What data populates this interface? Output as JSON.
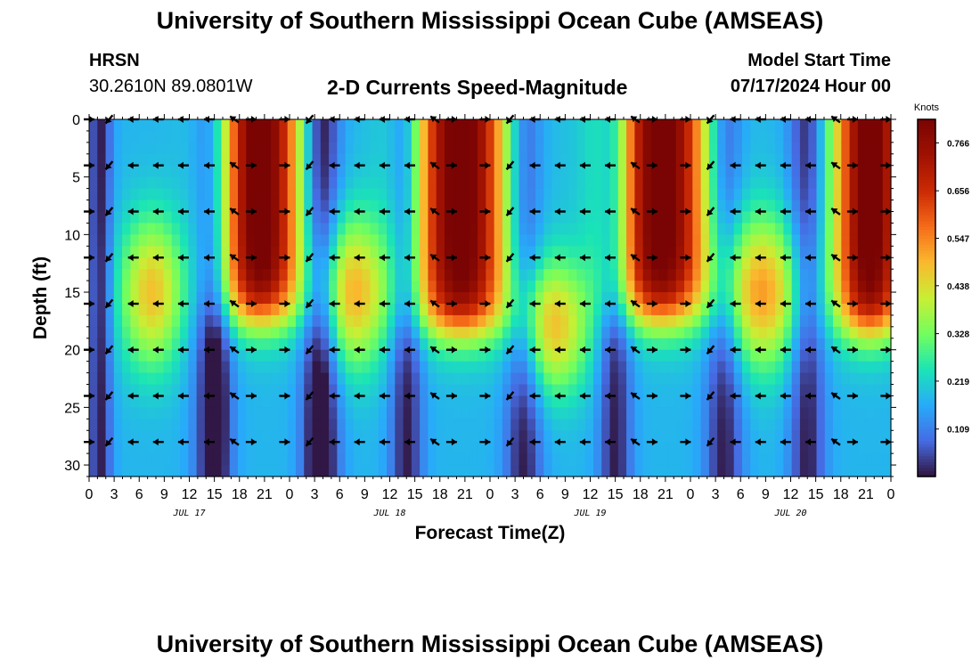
{
  "header": {
    "title": "University of Southern Mississippi Ocean Cube (AMSEAS)",
    "station": "HRSN",
    "coordinates": "30.2610N  89.0801W",
    "chart_title": "2-D Currents Speed-Magnitude",
    "model_start_label": "Model Start Time",
    "model_start_value": "07/17/2024 Hour 00"
  },
  "footer": {
    "title": "University of Southern Mississippi Ocean Cube (AMSEAS)"
  },
  "chart_data": {
    "type": "heatmap",
    "title": "2-D Currents Speed-Magnitude",
    "xlabel": "Forecast Time(Z)",
    "ylabel": "Depth (ft)",
    "x_range_hours": [
      0,
      96
    ],
    "ylim": [
      0,
      31
    ],
    "y_reversed": true,
    "x_tick_labels": [
      "0",
      "3",
      "6",
      "9",
      "12",
      "15",
      "18",
      "21",
      "0",
      "3",
      "6",
      "9",
      "12",
      "15",
      "18",
      "21",
      "0",
      "3",
      "6",
      "9",
      "12",
      "15",
      "18",
      "21",
      "0",
      "3",
      "6",
      "9",
      "12",
      "15",
      "18",
      "21",
      "0"
    ],
    "y_ticks": [
      0,
      5,
      10,
      15,
      20,
      25,
      30
    ],
    "day_labels": [
      {
        "label": "JUL 17",
        "hour": 12
      },
      {
        "label": "JUL 18",
        "hour": 36
      },
      {
        "label": "JUL 19",
        "hour": 60
      },
      {
        "label": "JUL 20",
        "hour": 84
      }
    ],
    "colorbar": {
      "label": "Knots",
      "range": [
        0.0,
        0.82
      ],
      "ticks": [
        0.109,
        0.219,
        0.328,
        0.438,
        0.547,
        0.656,
        0.766
      ],
      "tick_labels": [
        "0.109",
        "0.219",
        "0.328",
        "0.438",
        "0.547",
        "0.656",
        "0.766"
      ]
    },
    "arrow_depths_ft": [
      0,
      4,
      8,
      12,
      16,
      20,
      24,
      28
    ],
    "arrow_hours": [
      0,
      2.4,
      5.3,
      8.3,
      11.3,
      14.4,
      17.4,
      19.4,
      23.4,
      26.4,
      29.4,
      32.4,
      35.4,
      38.4,
      41.4,
      43.4,
      47.4,
      50.4,
      53.4,
      56.4,
      59.4,
      62.4,
      65.4,
      67.4,
      71.4,
      74.4,
      77.4,
      80.4,
      83.4,
      86.4,
      89.4,
      91.4,
      95.4
    ]
  }
}
